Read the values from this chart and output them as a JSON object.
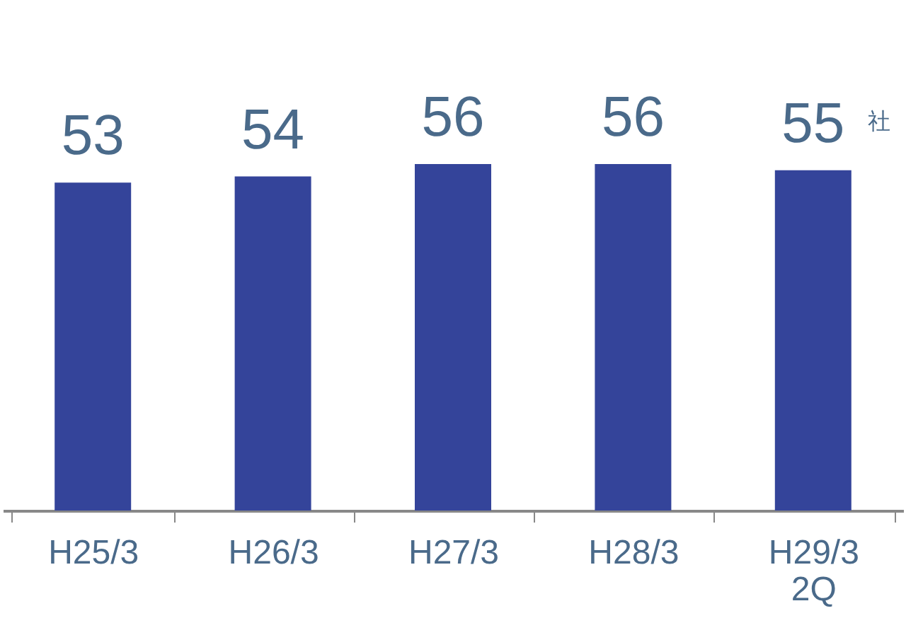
{
  "chart_data": {
    "type": "bar",
    "categories": [
      "H25/3",
      "H26/3",
      "H27/3",
      "H28/3",
      "H29/3\n2Q"
    ],
    "values": [
      53,
      54,
      56,
      56,
      55
    ],
    "color": "#34449a",
    "data_labels": true,
    "annotations": [
      "社"
    ],
    "grid": false
  }
}
